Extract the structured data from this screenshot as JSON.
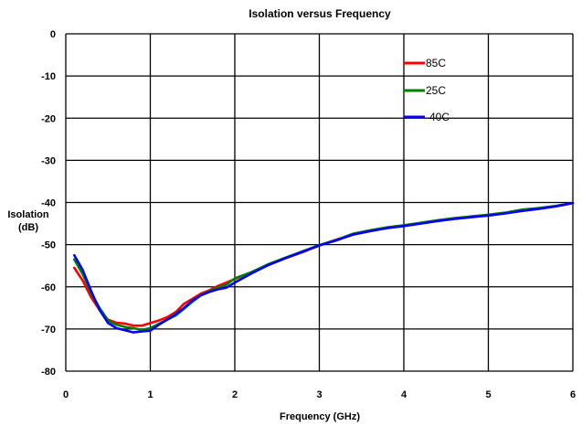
{
  "chart_data": {
    "type": "line",
    "title": "Isolation versus Frequency",
    "xlabel": "Frequency (GHz)",
    "ylabel_lines": [
      "Isolation",
      "(dB)"
    ],
    "xlim": [
      0,
      6
    ],
    "ylim": [
      -80,
      0
    ],
    "xticks": [
      0,
      1,
      2,
      3,
      4,
      5,
      6
    ],
    "yticks": [
      0,
      -10,
      -20,
      -30,
      -40,
      -50,
      -60,
      -70,
      -80
    ],
    "grid": true,
    "legend_position": "top-right",
    "series": [
      {
        "name": "85C",
        "color": "#ff0000",
        "x": [
          0.1,
          0.2,
          0.3,
          0.4,
          0.5,
          0.6,
          0.7,
          0.8,
          0.9,
          1.0,
          1.1,
          1.2,
          1.3,
          1.4,
          1.5,
          1.6,
          1.7,
          1.8,
          1.9,
          2.0,
          2.2,
          2.4,
          2.6,
          2.8,
          3.0,
          3.2,
          3.4,
          3.6,
          3.8,
          4.0,
          4.2,
          4.4,
          4.6,
          4.8,
          5.0,
          5.2,
          5.4,
          5.6,
          5.8,
          6.0
        ],
        "y": [
          -55.5,
          -58.5,
          -62.5,
          -65.5,
          -67.8,
          -68.5,
          -68.7,
          -69.2,
          -69.2,
          -68.6,
          -68.0,
          -67.2,
          -66.0,
          -64.0,
          -62.8,
          -61.6,
          -60.8,
          -59.8,
          -59.0,
          -58.2,
          -56.5,
          -54.8,
          -53.2,
          -51.8,
          -50.2,
          -48.8,
          -47.6,
          -46.8,
          -46.0,
          -45.5,
          -44.9,
          -44.3,
          -43.8,
          -43.4,
          -43.0,
          -42.5,
          -42.0,
          -41.5,
          -40.9,
          -40.2
        ]
      },
      {
        "name": "25C",
        "color": "#008000",
        "x": [
          0.1,
          0.2,
          0.3,
          0.4,
          0.5,
          0.6,
          0.7,
          0.8,
          0.9,
          1.0,
          1.1,
          1.2,
          1.3,
          1.4,
          1.5,
          1.6,
          1.7,
          1.8,
          1.9,
          2.0,
          2.2,
          2.4,
          2.6,
          2.8,
          3.0,
          3.2,
          3.4,
          3.6,
          3.8,
          4.0,
          4.2,
          4.4,
          4.6,
          4.8,
          5.0,
          5.2,
          5.4,
          5.6,
          5.8,
          6.0
        ],
        "y": [
          -53.5,
          -57.0,
          -61.5,
          -65.0,
          -68.0,
          -69.0,
          -69.5,
          -69.8,
          -70.2,
          -69.8,
          -68.8,
          -67.8,
          -66.8,
          -65.2,
          -63.5,
          -62.0,
          -61.0,
          -60.2,
          -59.5,
          -58.0,
          -56.5,
          -54.6,
          -53.1,
          -51.6,
          -50.1,
          -48.9,
          -47.4,
          -46.6,
          -45.9,
          -45.4,
          -44.8,
          -44.2,
          -43.7,
          -43.3,
          -42.9,
          -42.4,
          -41.7,
          -41.3,
          -40.8,
          -40.1
        ]
      },
      {
        "name": "-40C",
        "color": "#0000ff",
        "x": [
          0.1,
          0.2,
          0.3,
          0.4,
          0.5,
          0.6,
          0.7,
          0.8,
          0.9,
          1.0,
          1.1,
          1.2,
          1.3,
          1.4,
          1.5,
          1.6,
          1.7,
          1.8,
          1.9,
          2.0,
          2.2,
          2.4,
          2.6,
          2.8,
          3.0,
          3.2,
          3.4,
          3.6,
          3.8,
          4.0,
          4.2,
          4.4,
          4.6,
          4.8,
          5.0,
          5.2,
          5.4,
          5.6,
          5.8,
          6.0
        ],
        "y": [
          -52.5,
          -56.0,
          -61.0,
          -65.5,
          -68.6,
          -69.8,
          -70.3,
          -70.8,
          -70.6,
          -70.4,
          -69.0,
          -67.8,
          -66.5,
          -65.0,
          -63.2,
          -62.0,
          -61.2,
          -60.6,
          -60.2,
          -59.0,
          -56.8,
          -54.8,
          -53.2,
          -51.7,
          -50.2,
          -49.0,
          -47.6,
          -46.8,
          -46.1,
          -45.6,
          -45.0,
          -44.4,
          -43.9,
          -43.5,
          -43.1,
          -42.6,
          -42.0,
          -41.5,
          -40.9,
          -40.1
        ]
      }
    ]
  }
}
